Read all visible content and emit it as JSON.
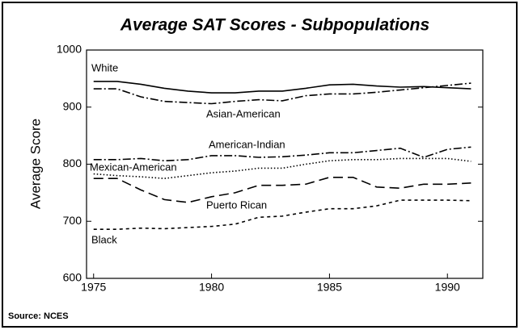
{
  "chart_data": {
    "type": "line",
    "title": "Average SAT Scores - Subpopulations",
    "y_label": "Average Score",
    "source": "Source: NCES",
    "x": [
      1975,
      1976,
      1977,
      1978,
      1979,
      1980,
      1981,
      1982,
      1983,
      1984,
      1985,
      1986,
      1987,
      1988,
      1989,
      1990,
      1991
    ],
    "xlim": [
      1974.7,
      1991.5
    ],
    "xticks": [
      1975,
      1980,
      1985,
      1990
    ],
    "ylim": [
      600,
      1000
    ],
    "yticks": [
      600,
      700,
      800,
      900,
      1000
    ],
    "grid": false,
    "series": [
      {
        "name": "White",
        "color": "#000000",
        "dash": "solid",
        "values": [
          945,
          945,
          940,
          933,
          928,
          925,
          925,
          928,
          928,
          933,
          939,
          940,
          937,
          935,
          936,
          934,
          932
        ]
      },
      {
        "name": "Asian-American",
        "color": "#000000",
        "dash": "dashdot",
        "values": [
          932,
          932,
          918,
          910,
          908,
          906,
          910,
          913,
          911,
          920,
          923,
          923,
          926,
          930,
          934,
          938,
          942
        ]
      },
      {
        "name": "American-Indian",
        "color": "#000000",
        "dash": "dashdot",
        "values": [
          808,
          808,
          810,
          806,
          808,
          815,
          815,
          812,
          813,
          816,
          820,
          820,
          824,
          828,
          812,
          826,
          830
        ]
      },
      {
        "name": "Mexican-American",
        "color": "#000000",
        "dash": "dotted",
        "values": [
          783,
          780,
          778,
          775,
          780,
          785,
          788,
          793,
          793,
          800,
          806,
          808,
          808,
          810,
          810,
          810,
          805
        ]
      },
      {
        "name": "Puerto Rican",
        "color": "#000000",
        "dash": "longdash",
        "values": [
          775,
          775,
          755,
          738,
          733,
          743,
          750,
          763,
          763,
          765,
          777,
          777,
          760,
          758,
          765,
          765,
          767
        ]
      },
      {
        "name": "Black",
        "color": "#000000",
        "dash": "shortdash",
        "values": [
          686,
          686,
          688,
          687,
          689,
          691,
          695,
          707,
          709,
          716,
          722,
          722,
          727,
          737,
          737,
          737,
          736
        ]
      }
    ]
  }
}
